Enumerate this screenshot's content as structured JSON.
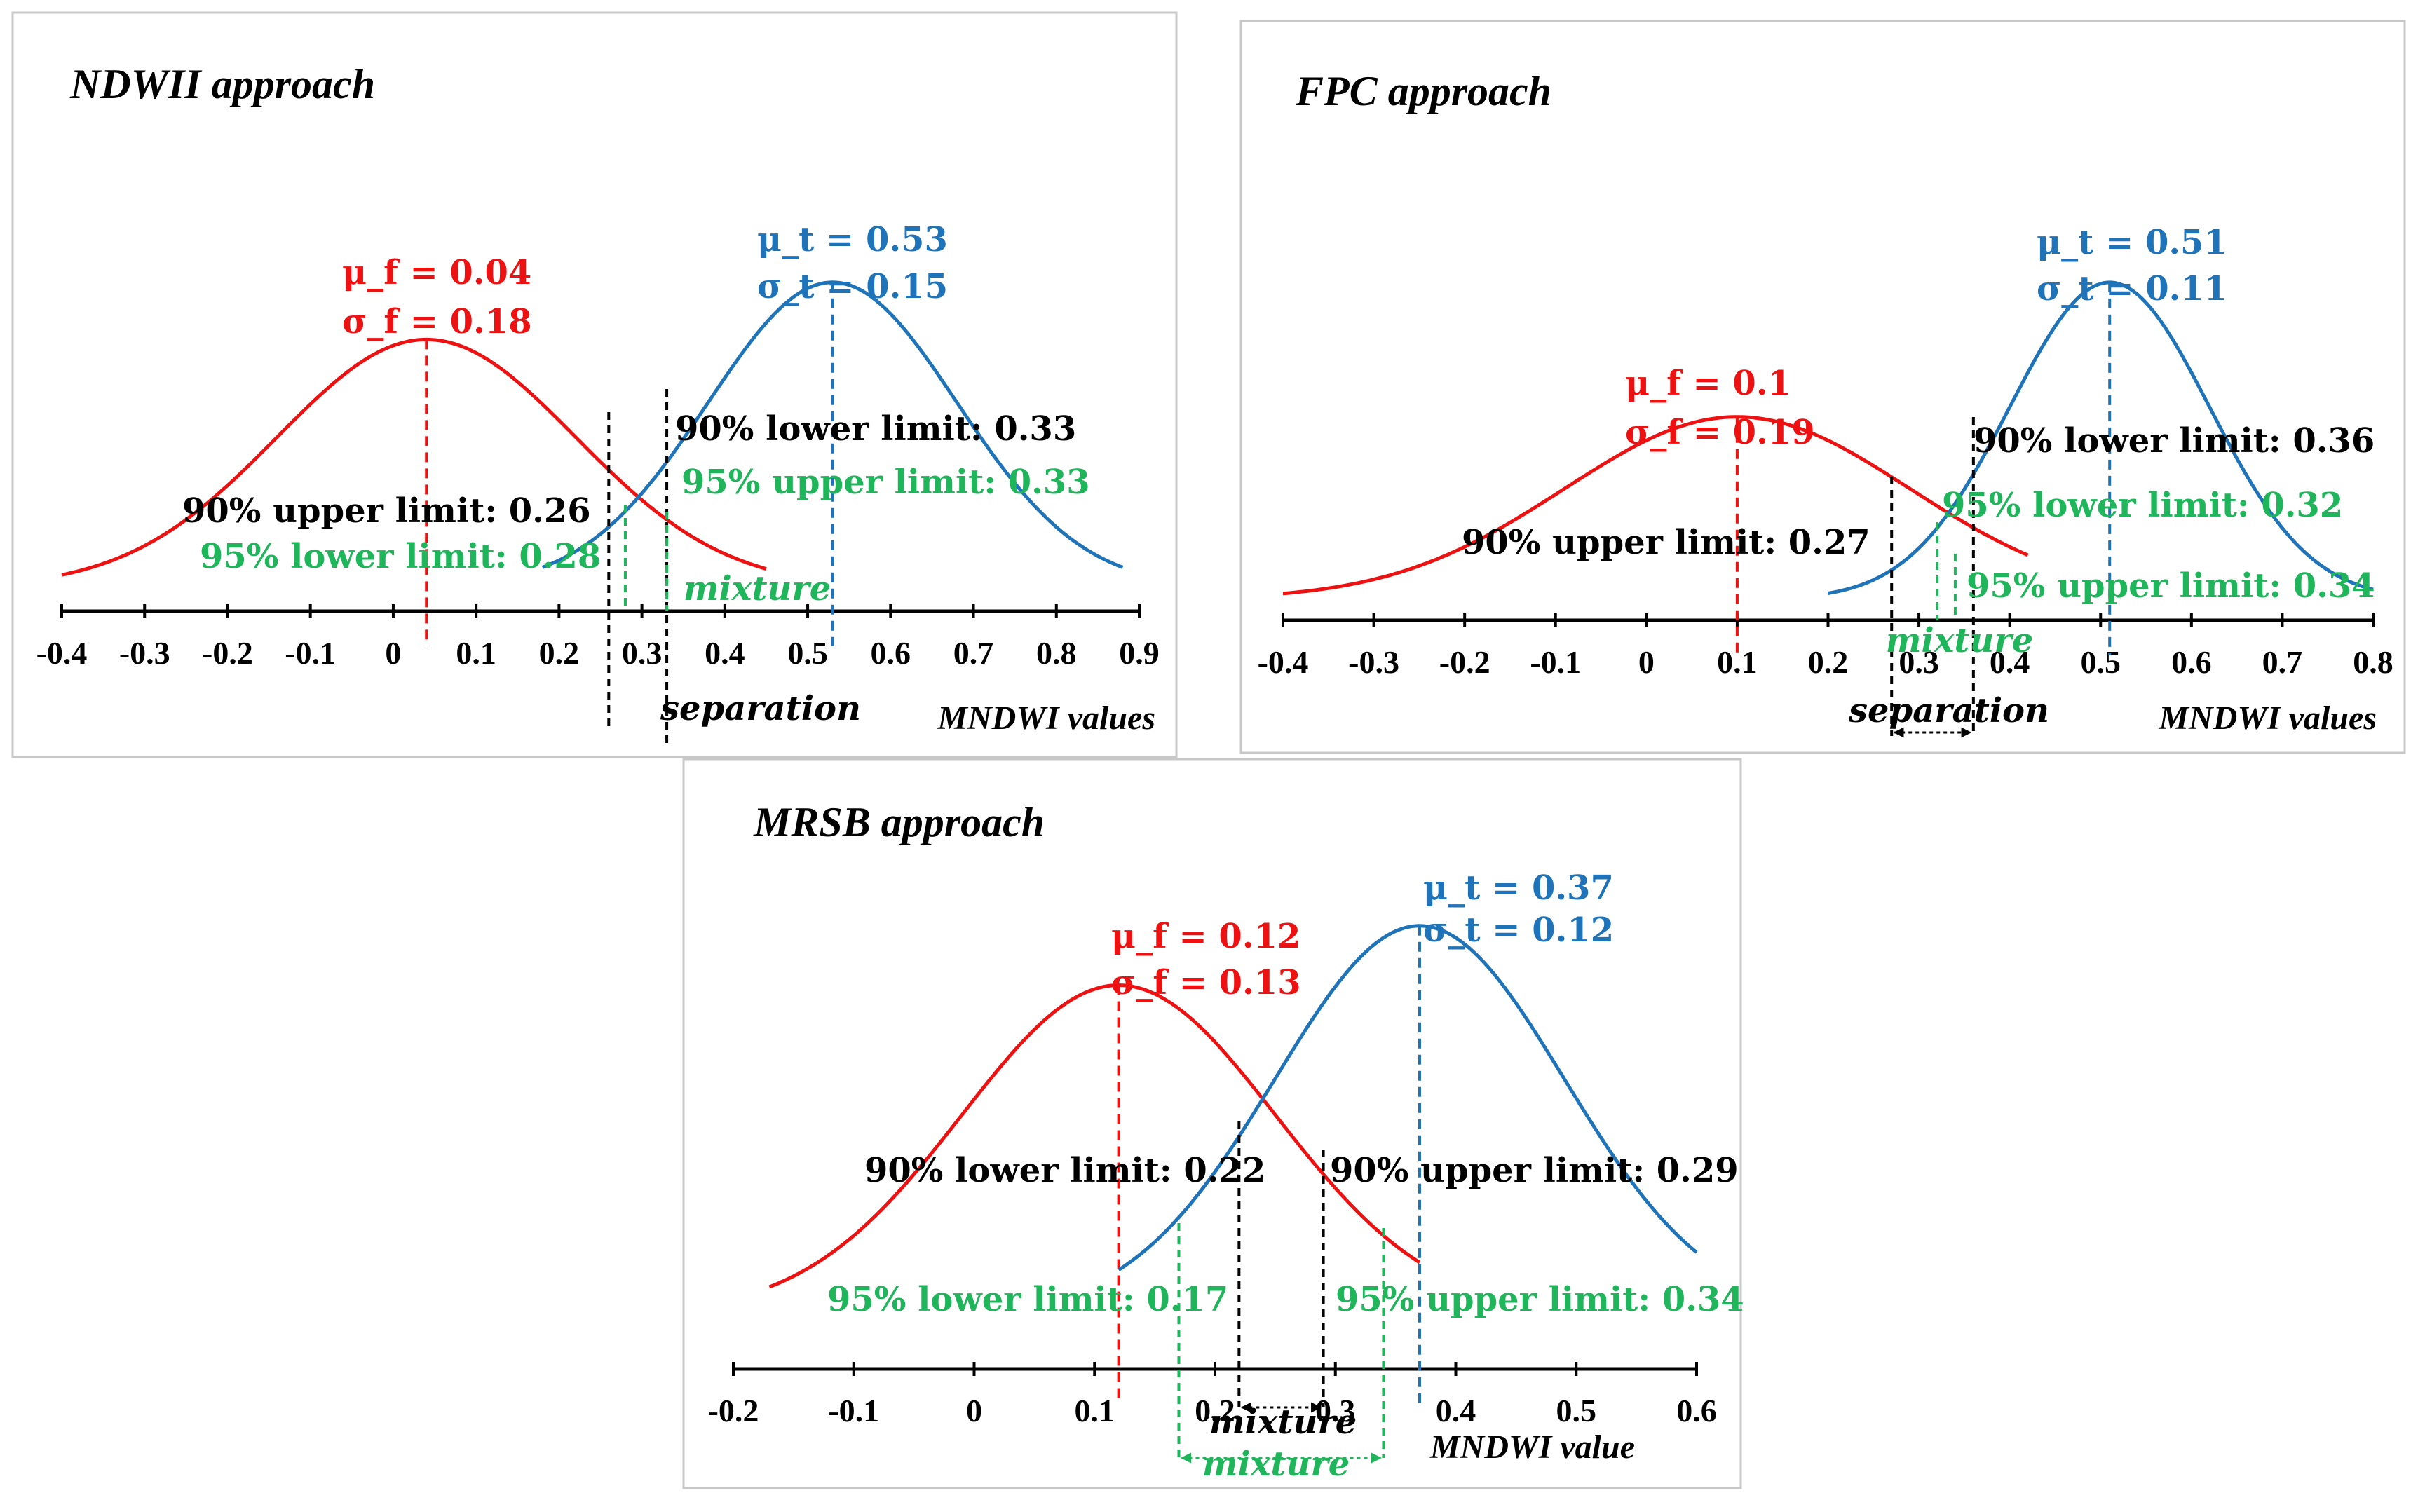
{
  "colors": {
    "false_curve": "#ee1111",
    "true_curve": "#1f74b9",
    "limit90": "#000000",
    "limit95": "#1fb55a",
    "frame": "#c8c8c8"
  },
  "chart_data": [
    {
      "type": "line",
      "title": "NDWII approach",
      "xlabel": "MNDWI values",
      "xlim": [
        -0.4,
        0.9
      ],
      "x_ticks": [
        "-0.4",
        "-0.3",
        "-0.2",
        "-0.1",
        "0",
        "0.1",
        "0.2",
        "0.3",
        "0.4",
        "0.5",
        "0.6",
        "0.7",
        "0.8",
        "0.9"
      ],
      "series": [
        {
          "name": "false",
          "mu": 0.04,
          "sigma": 0.18,
          "x_range": [
            -0.4,
            0.45
          ],
          "peak": 0.52,
          "mu_label": "μ_f = 0.04",
          "sigma_label": "σ_f = 0.18"
        },
        {
          "name": "true",
          "mu": 0.53,
          "sigma": 0.15,
          "x_range": [
            0.18,
            0.88
          ],
          "peak": 0.64,
          "mu_label": "μ_t = 0.53",
          "sigma_label": "σ_t = 0.15"
        }
      ],
      "limits": [
        {
          "level": "90",
          "kind": "upper",
          "value": 0.26,
          "label": "90% upper limit: 0.26"
        },
        {
          "level": "90",
          "kind": "lower",
          "value": 0.33,
          "label": "90% lower limit: 0.33"
        },
        {
          "level": "95",
          "kind": "lower",
          "value": 0.28,
          "label": "95% lower limit: 0.28"
        },
        {
          "level": "95",
          "kind": "upper",
          "value": 0.33,
          "label": "95% upper limit: 0.33"
        }
      ],
      "zones": [
        {
          "label": "separation",
          "color": "black"
        },
        {
          "label": "mixture",
          "color": "green"
        }
      ]
    },
    {
      "type": "line",
      "title": "FPC approach",
      "xlabel": "MNDWI values",
      "xlim": [
        -0.4,
        0.8
      ],
      "x_ticks": [
        "-0.4",
        "-0.3",
        "-0.2",
        "-0.1",
        "0",
        "0.1",
        "0.2",
        "0.3",
        "0.4",
        "0.5",
        "0.6",
        "0.7",
        "0.8"
      ],
      "series": [
        {
          "name": "false",
          "mu": 0.1,
          "sigma": 0.19,
          "x_range": [
            -0.4,
            0.42
          ],
          "peak": 0.38,
          "mu_label": "μ_f = 0.1",
          "sigma_label": "σ_f = 0.19"
        },
        {
          "name": "true",
          "mu": 0.51,
          "sigma": 0.11,
          "x_range": [
            0.2,
            0.8
          ],
          "peak": 0.66,
          "mu_label": "μ_t = 0.51",
          "sigma_label": "σ_t = 0.11"
        }
      ],
      "limits": [
        {
          "level": "90",
          "kind": "upper",
          "value": 0.27,
          "label": "90% upper limit: 0.27"
        },
        {
          "level": "90",
          "kind": "lower",
          "value": 0.36,
          "label": "90% lower limit: 0.36"
        },
        {
          "level": "95",
          "kind": "lower",
          "value": 0.32,
          "label": "95% lower limit: 0.32"
        },
        {
          "level": "95",
          "kind": "upper",
          "value": 0.34,
          "label": "95% upper limit: 0.34"
        }
      ],
      "zones": [
        {
          "label": "separation",
          "color": "black"
        },
        {
          "label": "mixture",
          "color": "green"
        }
      ]
    },
    {
      "type": "line",
      "title": "MRSB approach",
      "xlabel": "MNDWI value",
      "xlim": [
        -0.2,
        0.6
      ],
      "x_ticks": [
        "-0.2",
        "-0.1",
        "0",
        "0.1",
        "0.2",
        "0.3",
        "0.4",
        "0.5",
        "0.6"
      ],
      "series": [
        {
          "name": "false",
          "mu": 0.12,
          "sigma": 0.13,
          "x_range": [
            -0.17,
            0.37
          ],
          "peak": 0.72,
          "mu_label": "μ_f = 0.12",
          "sigma_label": "σ_f = 0.13"
        },
        {
          "name": "true",
          "mu": 0.37,
          "sigma": 0.12,
          "x_range": [
            0.12,
            0.6
          ],
          "peak": 0.85,
          "mu_label": "μ_t = 0.37",
          "sigma_label": "σ_t = 0.12"
        }
      ],
      "limits": [
        {
          "level": "90",
          "kind": "lower",
          "value": 0.22,
          "label": "90% lower limit: 0.22"
        },
        {
          "level": "90",
          "kind": "upper",
          "value": 0.29,
          "label": "90% upper limit: 0.29"
        },
        {
          "level": "95",
          "kind": "lower",
          "value": 0.17,
          "label": "95% lower limit: 0.17"
        },
        {
          "level": "95",
          "kind": "upper",
          "value": 0.34,
          "label": "95% upper limit: 0.34"
        }
      ],
      "zones": [
        {
          "label": "mixture",
          "color": "black"
        },
        {
          "label": "mixture",
          "color": "green"
        }
      ]
    }
  ]
}
